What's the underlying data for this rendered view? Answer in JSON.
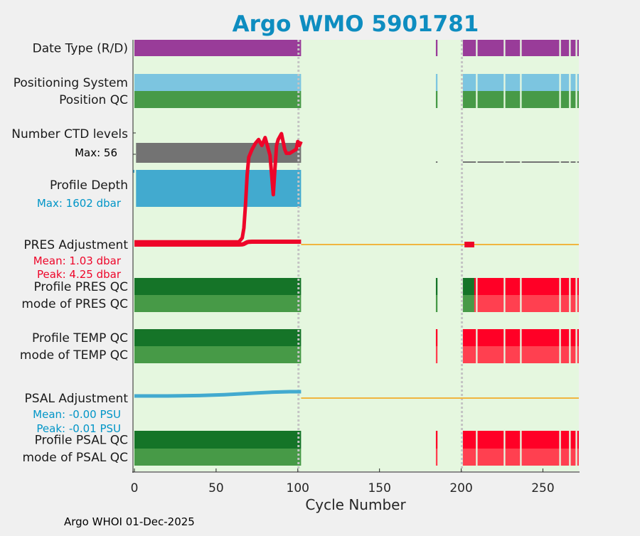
{
  "title": "Argo WMO 5901781",
  "footer": "Argo WHOI 01-Dec-2025",
  "chart_data": {
    "type": "status-timeline",
    "xlabel": "Cycle Number",
    "xlim": [
      0,
      272
    ],
    "xticks": [
      0,
      50,
      100,
      150,
      200,
      250
    ],
    "grid": false,
    "vertical_markers": [
      100,
      200
    ],
    "colors": {
      "background": "#e5f7df",
      "purple": "#993c99",
      "lightblue": "#7cc5e0",
      "green": "#479a47",
      "darkgreen": "#157428",
      "red": "#ff0026",
      "lightred": "#ff4050",
      "gray": "#737373",
      "blue": "#42aacf",
      "orange": "#f0b540",
      "redline": "#ee0529",
      "teal": "#0095c7"
    },
    "rows": [
      {
        "label": "Date Type (R/D)",
        "segments": [
          {
            "from": 0,
            "to": 102,
            "color": "purple"
          },
          {
            "from": 184.5,
            "to": 185.5,
            "color": "purple"
          },
          {
            "from": 201,
            "to": 209,
            "color": "purple"
          },
          {
            "from": 210,
            "to": 226,
            "color": "purple"
          },
          {
            "from": 227,
            "to": 236,
            "color": "purple"
          },
          {
            "from": 237,
            "to": 260,
            "color": "purple"
          },
          {
            "from": 261,
            "to": 266,
            "color": "purple"
          },
          {
            "from": 267,
            "to": 270,
            "color": "purple"
          },
          {
            "from": 271,
            "to": 272,
            "color": "purple"
          }
        ]
      },
      {
        "label": "Positioning System",
        "segments": [
          {
            "from": 0,
            "to": 102,
            "color": "lightblue"
          },
          {
            "from": 184.5,
            "to": 185.5,
            "color": "lightblue"
          },
          {
            "from": 201,
            "to": 209,
            "color": "lightblue"
          },
          {
            "from": 210,
            "to": 226,
            "color": "lightblue"
          },
          {
            "from": 227,
            "to": 236,
            "color": "lightblue"
          },
          {
            "from": 237,
            "to": 260,
            "color": "lightblue"
          },
          {
            "from": 261,
            "to": 266,
            "color": "lightblue"
          },
          {
            "from": 267,
            "to": 270,
            "color": "lightblue"
          },
          {
            "from": 271,
            "to": 272,
            "color": "lightblue"
          }
        ]
      },
      {
        "label": "Position QC",
        "segments": [
          {
            "from": 0,
            "to": 102,
            "color": "green"
          },
          {
            "from": 184.5,
            "to": 185.5,
            "color": "green"
          },
          {
            "from": 201,
            "to": 209,
            "color": "green"
          },
          {
            "from": 210,
            "to": 226,
            "color": "green"
          },
          {
            "from": 227,
            "to": 236,
            "color": "green"
          },
          {
            "from": 237,
            "to": 260,
            "color": "green"
          },
          {
            "from": 261,
            "to": 266,
            "color": "green"
          },
          {
            "from": 267,
            "to": 270,
            "color": "green"
          },
          {
            "from": 271,
            "to": 272,
            "color": "green"
          }
        ]
      },
      {
        "label": "Profile PRES QC",
        "segments": [
          {
            "from": 0,
            "to": 102,
            "color": "darkgreen"
          },
          {
            "from": 184.5,
            "to": 185.5,
            "color": "darkgreen"
          },
          {
            "from": 201,
            "to": 208,
            "color": "darkgreen"
          },
          {
            "from": 208,
            "to": 209,
            "color": "red"
          },
          {
            "from": 210,
            "to": 226,
            "color": "red"
          },
          {
            "from": 227,
            "to": 236,
            "color": "red"
          },
          {
            "from": 237,
            "to": 260,
            "color": "red"
          },
          {
            "from": 261,
            "to": 266,
            "color": "red"
          },
          {
            "from": 267,
            "to": 270,
            "color": "red"
          },
          {
            "from": 271,
            "to": 272,
            "color": "red"
          }
        ]
      },
      {
        "label": "mode of PRES QC",
        "segments": [
          {
            "from": 0,
            "to": 102,
            "color": "green"
          },
          {
            "from": 184.5,
            "to": 185.5,
            "color": "green"
          },
          {
            "from": 201,
            "to": 208,
            "color": "green"
          },
          {
            "from": 208,
            "to": 209,
            "color": "lightred"
          },
          {
            "from": 210,
            "to": 226,
            "color": "lightred"
          },
          {
            "from": 227,
            "to": 236,
            "color": "lightred"
          },
          {
            "from": 237,
            "to": 260,
            "color": "lightred"
          },
          {
            "from": 261,
            "to": 266,
            "color": "lightred"
          },
          {
            "from": 267,
            "to": 270,
            "color": "lightred"
          },
          {
            "from": 271,
            "to": 272,
            "color": "lightred"
          }
        ]
      },
      {
        "label": "Profile TEMP QC",
        "segments": [
          {
            "from": 0,
            "to": 102,
            "color": "darkgreen"
          },
          {
            "from": 184.5,
            "to": 185.5,
            "color": "red"
          },
          {
            "from": 201,
            "to": 209,
            "color": "red"
          },
          {
            "from": 210,
            "to": 226,
            "color": "red"
          },
          {
            "from": 227,
            "to": 236,
            "color": "red"
          },
          {
            "from": 237,
            "to": 260,
            "color": "red"
          },
          {
            "from": 261,
            "to": 266,
            "color": "red"
          },
          {
            "from": 267,
            "to": 270,
            "color": "red"
          },
          {
            "from": 271,
            "to": 272,
            "color": "red"
          }
        ]
      },
      {
        "label": "mode of TEMP QC",
        "segments": [
          {
            "from": 0,
            "to": 102,
            "color": "green"
          },
          {
            "from": 184.5,
            "to": 185.5,
            "color": "lightred"
          },
          {
            "from": 201,
            "to": 209,
            "color": "lightred"
          },
          {
            "from": 210,
            "to": 226,
            "color": "lightred"
          },
          {
            "from": 227,
            "to": 236,
            "color": "lightred"
          },
          {
            "from": 237,
            "to": 260,
            "color": "lightred"
          },
          {
            "from": 261,
            "to": 266,
            "color": "lightred"
          },
          {
            "from": 267,
            "to": 270,
            "color": "lightred"
          },
          {
            "from": 271,
            "to": 272,
            "color": "lightred"
          }
        ]
      },
      {
        "label": "Profile PSAL QC",
        "segments": [
          {
            "from": 0,
            "to": 102,
            "color": "darkgreen"
          },
          {
            "from": 184.5,
            "to": 185.5,
            "color": "red"
          },
          {
            "from": 201,
            "to": 209,
            "color": "red"
          },
          {
            "from": 210,
            "to": 226,
            "color": "red"
          },
          {
            "from": 227,
            "to": 236,
            "color": "red"
          },
          {
            "from": 237,
            "to": 260,
            "color": "red"
          },
          {
            "from": 261,
            "to": 266,
            "color": "red"
          },
          {
            "from": 267,
            "to": 270,
            "color": "red"
          },
          {
            "from": 271,
            "to": 272,
            "color": "red"
          }
        ]
      },
      {
        "label": "mode of PSAL QC",
        "segments": [
          {
            "from": 0,
            "to": 102,
            "color": "green"
          },
          {
            "from": 184.5,
            "to": 185.5,
            "color": "lightred"
          },
          {
            "from": 201,
            "to": 209,
            "color": "lightred"
          },
          {
            "from": 210,
            "to": 226,
            "color": "lightred"
          },
          {
            "from": 227,
            "to": 236,
            "color": "lightred"
          },
          {
            "from": 237,
            "to": 260,
            "color": "lightred"
          },
          {
            "from": 261,
            "to": 266,
            "color": "lightred"
          },
          {
            "from": 267,
            "to": 270,
            "color": "lightred"
          },
          {
            "from": 271,
            "to": 272,
            "color": "lightred"
          }
        ]
      }
    ],
    "ctd_levels": {
      "label": "Number CTD levels",
      "max_label": "Max: 56",
      "bar": {
        "from": 1,
        "to": 102,
        "color": "gray"
      },
      "ticks": [
        [
          184.5,
          185.5
        ],
        [
          201,
          209
        ],
        [
          210,
          226
        ],
        [
          227,
          236
        ],
        [
          237,
          260
        ],
        [
          261,
          266
        ],
        [
          267,
          270
        ],
        [
          271,
          272
        ]
      ],
      "curve": [
        [
          0,
          1
        ],
        [
          10,
          1
        ],
        [
          20,
          1
        ],
        [
          30,
          1
        ],
        [
          40,
          1
        ],
        [
          50,
          1
        ],
        [
          60,
          1
        ],
        [
          64,
          1
        ],
        [
          66,
          3
        ],
        [
          67,
          8
        ],
        [
          68,
          20
        ],
        [
          69,
          35
        ],
        [
          70,
          44
        ],
        [
          72,
          48
        ],
        [
          74,
          51
        ],
        [
          76,
          53
        ],
        [
          78,
          50
        ],
        [
          80,
          54
        ],
        [
          82,
          48
        ],
        [
          83,
          45
        ],
        [
          84,
          35
        ],
        [
          85,
          25
        ],
        [
          86,
          38
        ],
        [
          87,
          50
        ],
        [
          88,
          53
        ],
        [
          90,
          56
        ],
        [
          91,
          52
        ],
        [
          92,
          48
        ],
        [
          93,
          46
        ],
        [
          95,
          46
        ],
        [
          97,
          47
        ],
        [
          99,
          48
        ],
        [
          100,
          52
        ],
        [
          101,
          50
        ],
        [
          102,
          52
        ]
      ]
    },
    "profile_depth": {
      "label": "Profile Depth",
      "max_label": "Max: 1602 dbar",
      "bar": {
        "from": 1,
        "to": 102,
        "color": "blue"
      }
    },
    "pres_adjustment": {
      "label": "PRES Adjustment",
      "stats": [
        "Mean: 1.03 dbar",
        "Peak: 4.25 dbar"
      ],
      "baseline": {
        "from": 102,
        "to": 272,
        "color": "orange"
      },
      "line": {
        "color": "redline",
        "points": [
          [
            0,
            0
          ],
          [
            40,
            0
          ],
          [
            60,
            0
          ],
          [
            64,
            0
          ],
          [
            66,
            0.2
          ],
          [
            67,
            0.8
          ],
          [
            68,
            2.2
          ],
          [
            69,
            3.5
          ],
          [
            70,
            4.0
          ],
          [
            72,
            4.2
          ],
          [
            80,
            4.25
          ],
          [
            90,
            4.25
          ],
          [
            102,
            4.25
          ]
        ]
      },
      "marks": [
        {
          "from": 202,
          "to": 208,
          "color": "redline"
        }
      ]
    },
    "psal_adjustment": {
      "label": "PSAL Adjustment",
      "stats": [
        "Mean: -0.00 PSU",
        "Peak: -0.01 PSU"
      ],
      "baseline": {
        "from": 102,
        "to": 272,
        "color": "orange"
      },
      "line": {
        "color": "blue",
        "points": [
          [
            0,
            0
          ],
          [
            20,
            0
          ],
          [
            40,
            -0.001
          ],
          [
            55,
            -0.003
          ],
          [
            65,
            -0.005
          ],
          [
            75,
            -0.007
          ],
          [
            85,
            -0.009
          ],
          [
            95,
            -0.01
          ],
          [
            102,
            -0.01
          ]
        ]
      }
    }
  }
}
